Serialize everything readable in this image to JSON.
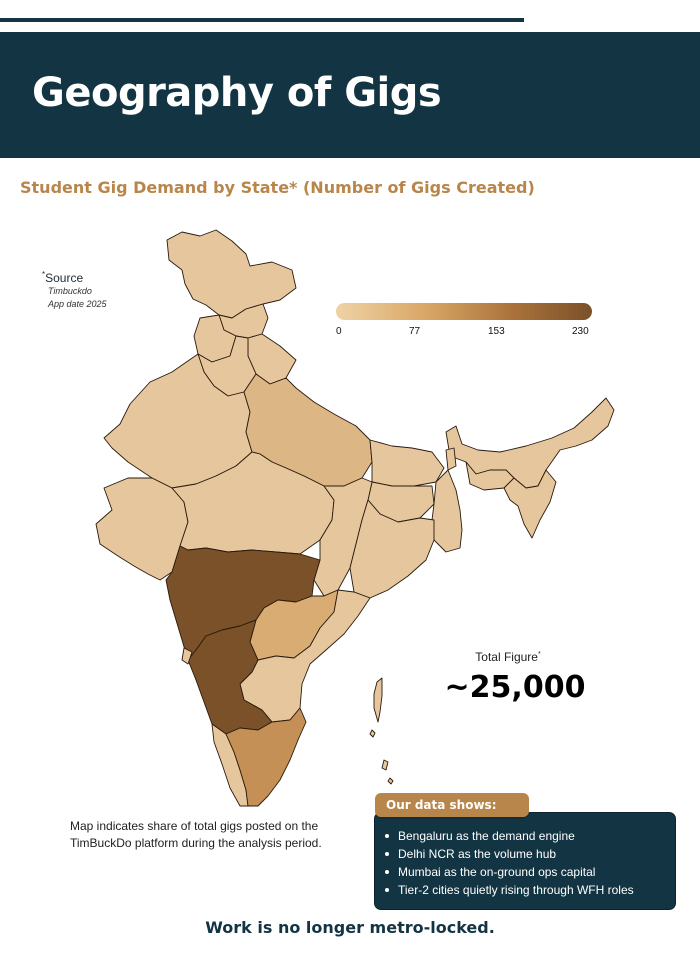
{
  "page": {
    "title": "Geography of Gigs",
    "subtitle": "Student Gig Demand by State* (Number of Gigs Created)",
    "colors": {
      "navy": "#133543",
      "accent": "#b8864b",
      "low": "#efd2a6",
      "high": "#7a5128"
    }
  },
  "source": {
    "title": "Source",
    "lines": [
      "Timbuckdo",
      "App date 2025"
    ]
  },
  "legend": {
    "ticks": [
      "0",
      "77",
      "153",
      "230"
    ],
    "min": 0,
    "max": 230
  },
  "map": {
    "name": "India",
    "region_shading": [
      {
        "region": "Maharashtra",
        "level": "highest"
      },
      {
        "region": "Karnataka",
        "level": "highest"
      },
      {
        "region": "Tamil Nadu",
        "level": "medium-high"
      },
      {
        "region": "Telangana",
        "level": "medium"
      },
      {
        "region": "Uttar Pradesh",
        "level": "medium"
      },
      {
        "region": "Other states",
        "level": "low"
      }
    ]
  },
  "total": {
    "label": "Total Figure",
    "value": "~25,000"
  },
  "caption": "Map indicates share of total gigs posted on the TimBuckDo platform during the analysis period.",
  "data_box": {
    "heading": "Our data shows:",
    "items": [
      "Bengaluru as the demand engine",
      "Delhi NCR as the volume hub",
      "Mumbai as the on-ground ops capital",
      "Tier-2 cities quietly rising through WFH roles"
    ]
  },
  "footer": "Work is no longer metro-locked."
}
